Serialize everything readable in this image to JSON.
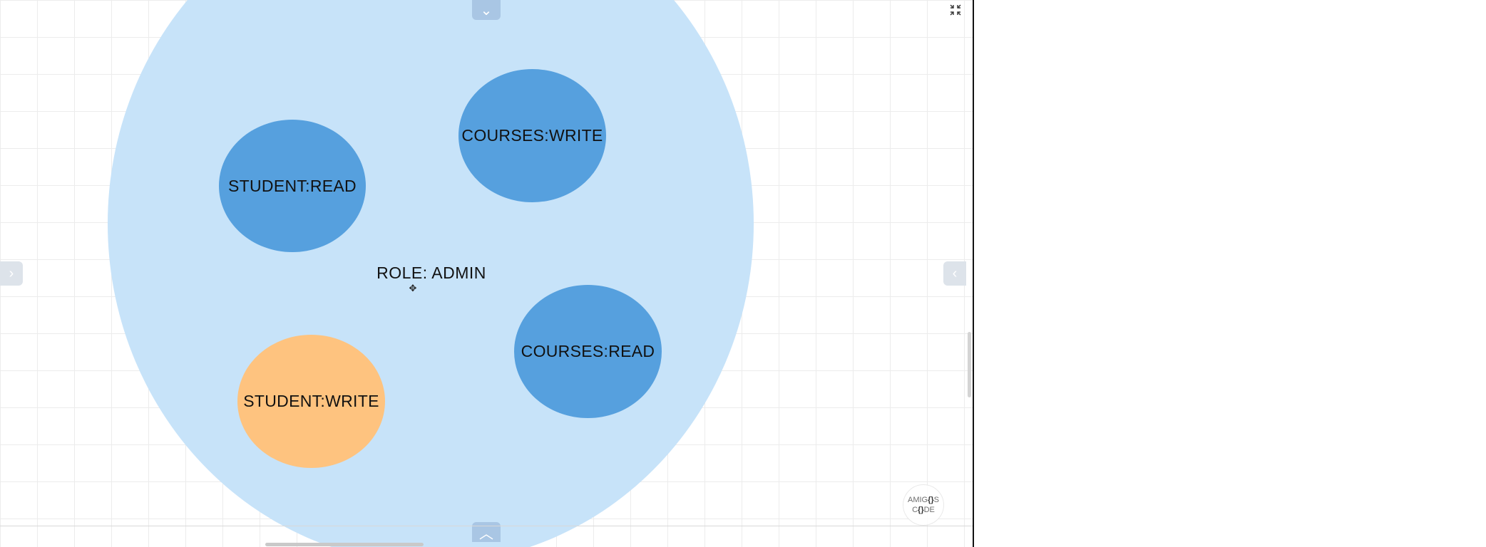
{
  "diagram": {
    "role": {
      "label": "ROLE: ADMIN",
      "color": "#c7e3f9"
    },
    "permissions": [
      {
        "label": "STUDENT:READ",
        "color": "#56a0de"
      },
      {
        "label": "COURSES:WRITE",
        "color": "#56a0de"
      },
      {
        "label": "COURSES:READ",
        "color": "#56a0de"
      },
      {
        "label": "STUDENT:WRITE",
        "color": "#fec37f"
      }
    ]
  },
  "controls": {
    "top_tab_icon": "chevron-down-icon",
    "bottom_tab_icon": "chevron-up-icon",
    "left_tab_icon": "chevron-right-icon",
    "right_tab_icon": "chevron-left-icon",
    "fullscreen_icon": "collapse-fullscreen-icon",
    "move_icon": "move-icon",
    "top_glyph": "⌄",
    "bottom_glyph": "︿",
    "left_glyph": "›",
    "right_glyph": "‹",
    "move_glyph": "✥"
  },
  "logo": {
    "line1_a": "AMIG",
    "line1_b": "{}",
    "line1_c": "S",
    "line2_a": "C",
    "line2_b": "{}",
    "line2_c": "DE"
  }
}
